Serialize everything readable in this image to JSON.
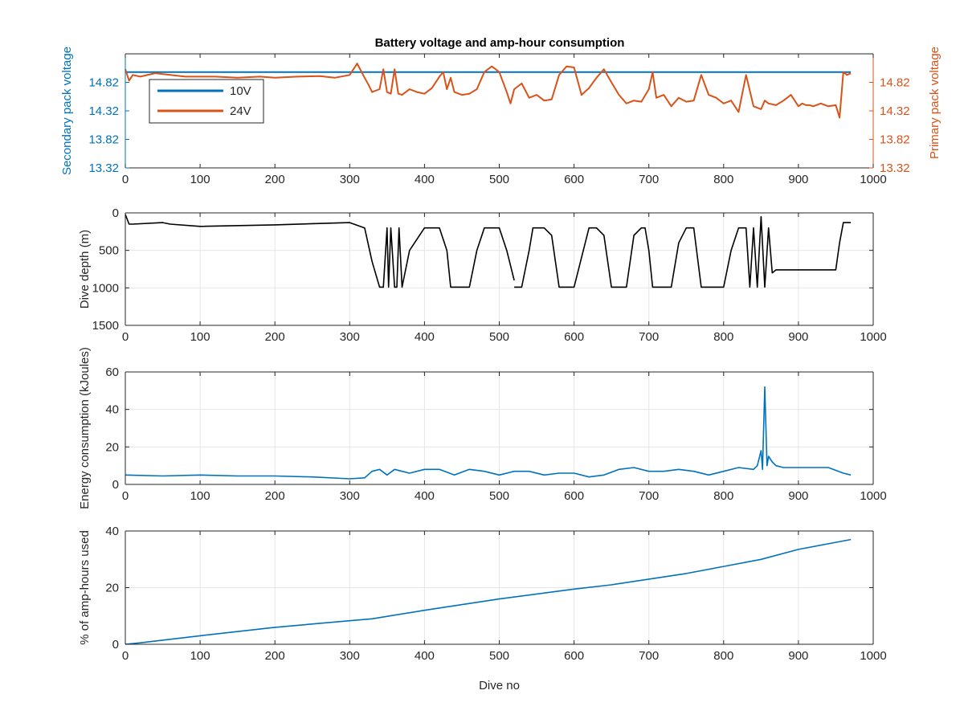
{
  "figure": {
    "title": "Battery voltage and amp-hour consumption"
  },
  "colors": {
    "blue": "#0072bd",
    "orange": "#d95319",
    "black": "#000000",
    "grid": "#e6e6e6",
    "axis": "#262626"
  },
  "chart_data": [
    {
      "type": "line",
      "title": "Battery voltage and amp-hour consumption",
      "xlabel": "",
      "ylabel_left": "Secondary pack voltage",
      "ylabel_right": "Primary pack voltage",
      "xlim": [
        0,
        1000
      ],
      "xticks": [
        0,
        100,
        200,
        300,
        400,
        500,
        600,
        700,
        800,
        900,
        1000
      ],
      "ylim_left": [
        13.32,
        15.32
      ],
      "yticks_left": [
        "13.32",
        "13.82",
        "14.32",
        "14.82"
      ],
      "ylim_right": [
        13.32,
        15.32
      ],
      "yticks_right": [
        "13.32",
        "13.82",
        "14.32",
        "14.82"
      ],
      "grid": false,
      "legend_position": "top-left",
      "series": [
        {
          "name": "10V",
          "axis": "left",
          "color": "#0072bd",
          "x": [
            0,
            970
          ],
          "y": [
            15.0,
            15.0
          ]
        },
        {
          "name": "24V",
          "axis": "right",
          "color": "#d95319",
          "x": [
            0,
            5,
            10,
            20,
            40,
            60,
            80,
            100,
            120,
            150,
            180,
            200,
            230,
            260,
            280,
            300,
            310,
            320,
            325,
            330,
            340,
            345,
            350,
            355,
            360,
            365,
            370,
            380,
            390,
            400,
            410,
            420,
            425,
            430,
            435,
            440,
            450,
            460,
            470,
            480,
            490,
            500,
            510,
            515,
            520,
            530,
            540,
            550,
            560,
            570,
            580,
            590,
            600,
            610,
            620,
            630,
            640,
            650,
            660,
            670,
            680,
            690,
            700,
            705,
            710,
            720,
            730,
            740,
            750,
            760,
            770,
            780,
            790,
            800,
            810,
            820,
            830,
            840,
            850,
            855,
            860,
            870,
            880,
            890,
            900,
            905,
            910,
            915,
            920,
            930,
            940,
            950,
            955,
            960,
            965,
            970
          ],
          "y": [
            15.05,
            14.85,
            14.95,
            14.92,
            14.98,
            14.95,
            14.92,
            14.92,
            14.92,
            14.9,
            14.92,
            14.9,
            14.92,
            14.93,
            14.9,
            14.95,
            15.15,
            14.9,
            14.78,
            14.65,
            14.7,
            15.05,
            14.65,
            14.62,
            15.05,
            14.62,
            14.6,
            14.7,
            14.65,
            14.62,
            14.72,
            14.92,
            15.0,
            14.7,
            14.9,
            14.65,
            14.6,
            14.62,
            14.7,
            15.0,
            15.1,
            15.0,
            14.65,
            14.45,
            14.7,
            14.8,
            14.55,
            14.6,
            14.5,
            14.52,
            14.95,
            15.1,
            15.08,
            14.6,
            14.72,
            14.9,
            15.05,
            14.82,
            14.6,
            14.45,
            14.5,
            14.48,
            14.7,
            15.0,
            14.55,
            14.6,
            14.4,
            14.55,
            14.48,
            14.5,
            14.95,
            14.6,
            14.55,
            14.45,
            14.5,
            14.3,
            14.95,
            14.4,
            14.35,
            14.5,
            14.45,
            14.42,
            14.5,
            14.6,
            14.4,
            14.45,
            14.42,
            14.42,
            14.4,
            14.45,
            14.4,
            14.42,
            14.2,
            15.0,
            14.95,
            14.98
          ]
        }
      ]
    },
    {
      "type": "line",
      "xlabel": "",
      "ylabel": "Dive depth (m)",
      "xlim": [
        0,
        1000
      ],
      "xticks": [
        0,
        100,
        200,
        300,
        400,
        500,
        600,
        700,
        800,
        900,
        1000
      ],
      "ylim": [
        0,
        1500
      ],
      "y_reversed": true,
      "yticks": [
        0,
        500,
        1000,
        1500
      ],
      "grid": true,
      "series": [
        {
          "color": "#000000",
          "x": [
            0,
            5,
            10,
            50,
            60,
            100,
            200,
            300,
            320,
            330,
            340,
            345,
            350,
            352,
            355,
            360,
            363,
            366,
            370,
            380,
            400,
            420,
            430,
            435,
            450,
            460,
            470,
            480,
            490,
            500,
            510,
            520,
            null,
            520,
            530,
            540,
            545,
            560,
            570,
            580,
            590,
            600,
            620,
            630,
            640,
            650,
            660,
            670,
            680,
            690,
            695,
            700,
            705,
            720,
            730,
            740,
            750,
            760,
            770,
            780,
            790,
            800,
            810,
            820,
            830,
            835,
            840,
            845,
            850,
            855,
            860,
            865,
            870,
            900,
            950,
            955,
            960,
            970
          ],
          "y": [
            20,
            150,
            150,
            130,
            150,
            180,
            160,
            130,
            200,
            650,
            990,
            990,
            200,
            990,
            200,
            990,
            990,
            200,
            990,
            500,
            200,
            200,
            500,
            990,
            990,
            990,
            500,
            200,
            200,
            200,
            500,
            900,
            null,
            990,
            990,
            500,
            200,
            200,
            300,
            990,
            990,
            990,
            200,
            200,
            300,
            990,
            990,
            990,
            300,
            200,
            200,
            500,
            990,
            990,
            990,
            400,
            200,
            200,
            990,
            990,
            990,
            990,
            500,
            200,
            200,
            990,
            200,
            990,
            50,
            990,
            200,
            800,
            760,
            760,
            760,
            400,
            130,
            130
          ]
        }
      ]
    },
    {
      "type": "line",
      "xlabel": "",
      "ylabel": "Energy consumption (kJoules)",
      "xlim": [
        0,
        1000
      ],
      "xticks": [
        0,
        100,
        200,
        300,
        400,
        500,
        600,
        700,
        800,
        900,
        1000
      ],
      "ylim": [
        0,
        60
      ],
      "yticks": [
        0,
        20,
        40,
        60
      ],
      "grid": true,
      "series": [
        {
          "color": "#0072bd",
          "x": [
            0,
            50,
            100,
            150,
            200,
            250,
            300,
            320,
            330,
            340,
            350,
            360,
            370,
            380,
            400,
            420,
            440,
            460,
            480,
            500,
            520,
            540,
            560,
            580,
            600,
            620,
            640,
            660,
            680,
            700,
            720,
            740,
            760,
            780,
            800,
            820,
            840,
            845,
            850,
            852,
            855,
            858,
            860,
            865,
            870,
            880,
            900,
            920,
            940,
            960,
            970
          ],
          "y": [
            5,
            4.5,
            5,
            4.5,
            4.5,
            4,
            3,
            3.5,
            7,
            8,
            5,
            8,
            7,
            6,
            8,
            8,
            5,
            8,
            7,
            5,
            7,
            7,
            5,
            6,
            6,
            4,
            5,
            8,
            9,
            7,
            7,
            8,
            7,
            5,
            7,
            9,
            8,
            10,
            18,
            8,
            52,
            10,
            15,
            12,
            10,
            9,
            9,
            9,
            9,
            6,
            5
          ]
        }
      ]
    },
    {
      "type": "line",
      "xlabel": "Dive no",
      "ylabel": "% of amp-hours used",
      "xlim": [
        0,
        1000
      ],
      "xticks": [
        0,
        100,
        200,
        300,
        400,
        500,
        600,
        700,
        800,
        900,
        1000
      ],
      "ylim": [
        0,
        40
      ],
      "yticks": [
        0,
        20,
        40
      ],
      "grid": true,
      "series": [
        {
          "color": "#0072bd",
          "x": [
            0,
            20,
            100,
            200,
            300,
            330,
            400,
            500,
            600,
            650,
            700,
            750,
            800,
            850,
            900,
            950,
            970
          ],
          "y": [
            0,
            0.5,
            3,
            6,
            8.3,
            9,
            12,
            16,
            19.5,
            21,
            23,
            25,
            27.5,
            30,
            33.5,
            36,
            37
          ]
        }
      ]
    }
  ]
}
